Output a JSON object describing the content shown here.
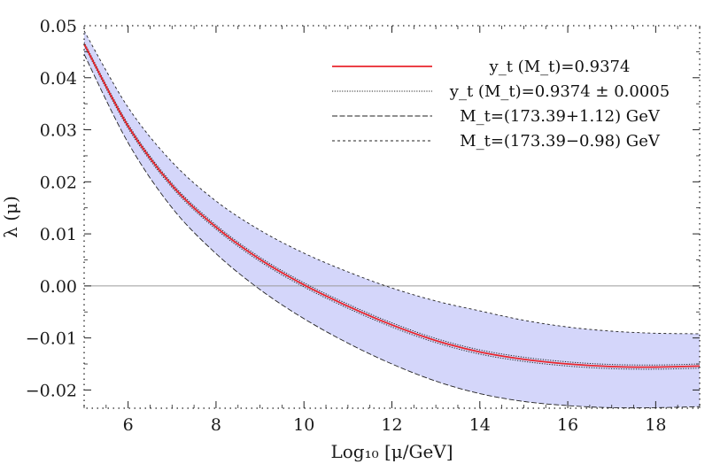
{
  "chart_data": {
    "type": "line",
    "xlabel": "Log₁₀ [μ/GeV]",
    "ylabel": "λ (μ)",
    "xlim": [
      5,
      19
    ],
    "ylim": [
      -0.0235,
      0.05
    ],
    "x_ticks": [
      6,
      8,
      10,
      12,
      14,
      16,
      18
    ],
    "x_tick_labels": [
      "6",
      "8",
      "10",
      "12",
      "14",
      "16",
      "18"
    ],
    "y_ticks": [
      0.04,
      0.03,
      0.02,
      0.01,
      0.0,
      -0.01,
      -0.02
    ],
    "y_tick_labels": [
      "0.04",
      "0.03",
      "0.02",
      "0.01",
      "0.00",
      "−0.01",
      "−0.02"
    ],
    "top_y_tick_label": "0.05",
    "zero_line": 0,
    "legend_position": "top-right",
    "legend": [
      {
        "text": "y_t (M_t)=0.9374",
        "style": "solid",
        "color": "#e8262d"
      },
      {
        "text": "y_t (M_t)=0.9374 ± 0.0005",
        "style": "dotted",
        "color": "#222222"
      },
      {
        "text": "M_t=(173.39+1.12) GeV",
        "style": "long-dash",
        "color": "#222222"
      },
      {
        "text": "M_t=(173.39−0.98) GeV",
        "style": "short-dash",
        "color": "#222222"
      }
    ],
    "band_color": "#d4d6fa",
    "series": [
      {
        "name": "y_t (M_t)=0.9374",
        "style": "solid",
        "color": "#e8262d",
        "x": [
          5,
          6,
          7,
          8,
          9,
          10,
          11,
          12,
          13,
          14,
          15,
          16,
          17,
          18,
          19
        ],
        "y": [
          0.0465,
          0.0307,
          0.0193,
          0.0113,
          0.0051,
          0.0002,
          -0.0039,
          -0.0075,
          -0.0105,
          -0.0127,
          -0.0141,
          -0.015,
          -0.0155,
          -0.0156,
          -0.0154
        ]
      },
      {
        "name": "y_t (M_t)=0.9374 + 0.0005",
        "style": "dotted",
        "color": "#222222",
        "x": [
          5,
          6,
          7,
          8,
          9,
          10,
          11,
          12,
          13,
          14,
          15,
          16,
          17,
          18,
          19
        ],
        "y": [
          0.0462,
          0.0303,
          0.0189,
          0.0109,
          0.0047,
          -0.0002,
          -0.0043,
          -0.0079,
          -0.0109,
          -0.0131,
          -0.0145,
          -0.0154,
          -0.0159,
          -0.016,
          -0.0158
        ]
      },
      {
        "name": "y_t (M_t)=0.9374 − 0.0005",
        "style": "dotted",
        "color": "#222222",
        "x": [
          5,
          6,
          7,
          8,
          9,
          10,
          11,
          12,
          13,
          14,
          15,
          16,
          17,
          18,
          19
        ],
        "y": [
          0.0468,
          0.0311,
          0.0197,
          0.0117,
          0.0055,
          0.0006,
          -0.0035,
          -0.0071,
          -0.0101,
          -0.0123,
          -0.0137,
          -0.0146,
          -0.0151,
          -0.0152,
          -0.015
        ]
      },
      {
        "name": "M_t=(173.39+1.12) GeV",
        "style": "long-dash",
        "color": "#222222",
        "x": [
          5,
          6,
          7,
          8,
          9,
          10,
          11,
          12,
          13,
          14,
          15,
          16,
          17,
          18,
          19
        ],
        "y": [
          0.0445,
          0.0275,
          0.015,
          0.0062,
          -0.0007,
          -0.0063,
          -0.011,
          -0.015,
          -0.0183,
          -0.0207,
          -0.0222,
          -0.023,
          -0.0234,
          -0.0234,
          -0.0232
        ]
      },
      {
        "name": "M_t=(173.39−0.98) GeV",
        "style": "short-dash",
        "color": "#222222",
        "x": [
          5,
          6,
          7,
          8,
          9,
          10,
          11,
          12,
          13,
          14,
          15,
          16,
          17,
          18,
          19
        ],
        "y": [
          0.049,
          0.0343,
          0.0238,
          0.0163,
          0.0107,
          0.0063,
          0.0027,
          -0.0004,
          -0.0029,
          -0.0048,
          -0.0066,
          -0.0079,
          -0.0087,
          -0.0091,
          -0.0092
        ]
      }
    ]
  }
}
